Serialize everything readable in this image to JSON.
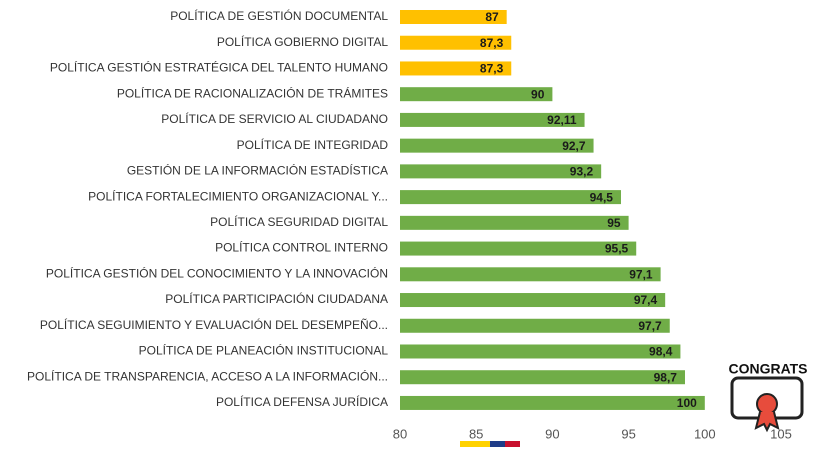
{
  "chart_data": {
    "type": "bar",
    "orientation": "horizontal",
    "categories": [
      "POLÍTICA DE GESTIÓN DOCUMENTAL",
      "POLÍTICA GOBIERNO DIGITAL",
      "POLÍTICA GESTIÓN ESTRATÉGICA DEL TALENTO HUMANO",
      "POLÍTICA DE RACIONALIZACIÓN DE TRÁMITES",
      "POLÍTICA DE SERVICIO AL CIUDADANO",
      "POLÍTICA DE INTEGRIDAD",
      "GESTIÓN DE LA INFORMACIÓN ESTADÍSTICA",
      "POLÍTICA FORTALECIMIENTO ORGANIZACIONAL Y...",
      "POLÍTICA SEGURIDAD DIGITAL",
      "POLÍTICA CONTROL INTERNO",
      "POLÍTICA GESTIÓN DEL CONOCIMIENTO Y LA INNOVACIÓN",
      "POLÍTICA PARTICIPACIÓN CIUDADANA",
      "POLÍTICA SEGUIMIENTO Y EVALUACIÓN DEL DESEMPEÑO...",
      "POLÍTICA DE PLANEACIÓN INSTITUCIONAL",
      "POLÍTICA DE TRANSPARENCIA, ACCESO A LA INFORMACIÓN...",
      "POLÍTICA DEFENSA JURÍDICA"
    ],
    "values": [
      87,
      87.3,
      87.3,
      90,
      92.11,
      92.7,
      93.2,
      94.5,
      95,
      95.5,
      97.1,
      97.4,
      97.7,
      98.4,
      98.7,
      100
    ],
    "value_labels": [
      "87",
      "87,3",
      "87,3",
      "90",
      "92,11",
      "92,7",
      "93,2",
      "94,5",
      "95",
      "95,5",
      "97,1",
      "97,4",
      "97,7",
      "98,4",
      "98,7",
      "100"
    ],
    "colors": [
      "#FFC000",
      "#FFC000",
      "#FFC000",
      "#70AD47",
      "#70AD47",
      "#70AD47",
      "#70AD47",
      "#70AD47",
      "#70AD47",
      "#70AD47",
      "#70AD47",
      "#70AD47",
      "#70AD47",
      "#70AD47",
      "#70AD47",
      "#70AD47"
    ],
    "xlim": [
      80,
      105
    ],
    "xticks": [
      80,
      85,
      90,
      95,
      100,
      105
    ],
    "grid": false,
    "badge": "CONGRATS"
  }
}
